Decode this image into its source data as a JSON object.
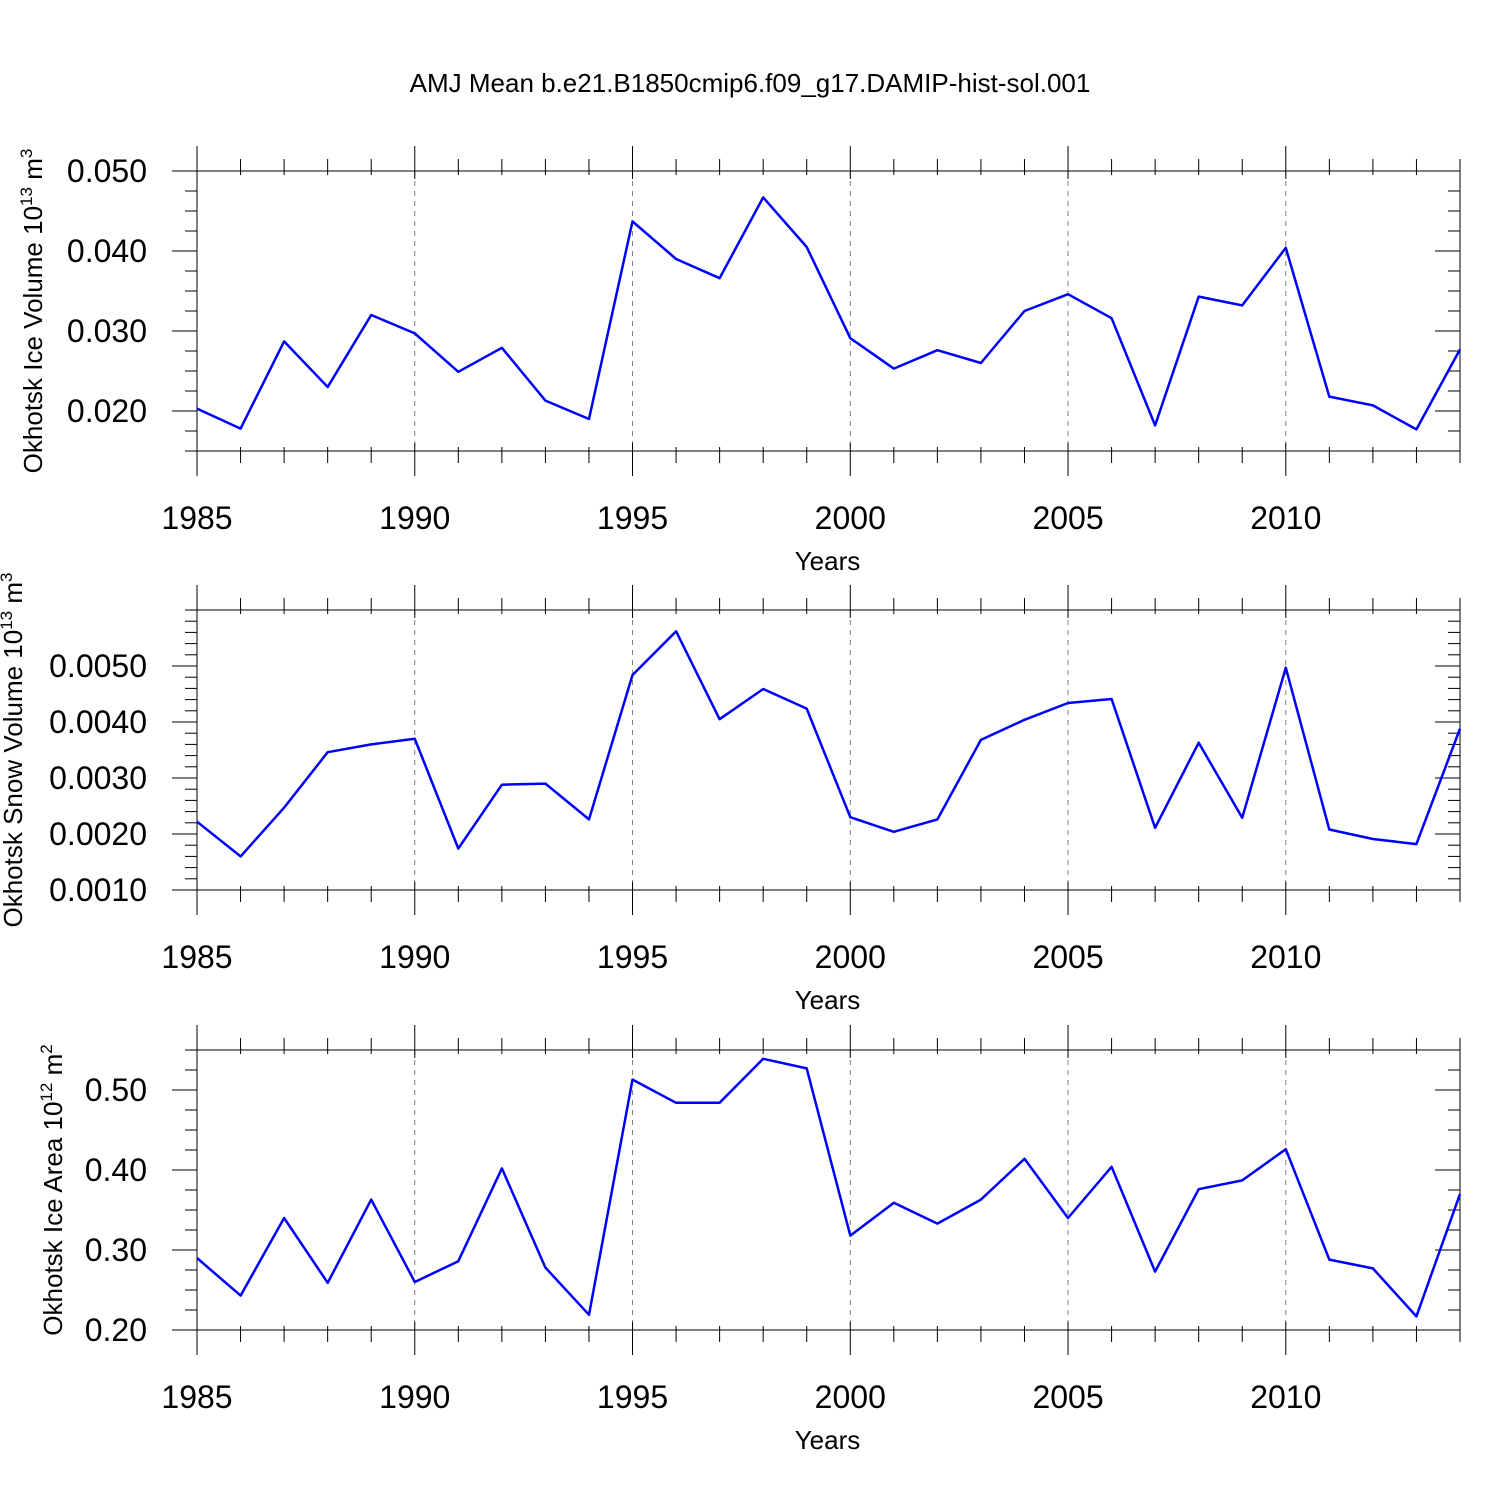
{
  "title": "AMJ Mean b.e21.B1850cmip6.f09_g17.DAMIP-hist-sol.001",
  "colors": {
    "line": "#0000ff",
    "axis": "#000000",
    "grid": "#808080"
  },
  "chart_data": [
    {
      "type": "line",
      "title": "",
      "xlabel": "Years",
      "ylabel": "Okhotsk Ice Volume 10",
      "ylabel_sup": "13",
      "ylabel_unit": "m",
      "ylabel_unit_sup": "3",
      "xlim": [
        1985,
        2014
      ],
      "ylim": [
        0.015,
        0.05
      ],
      "yticks": [
        0.02,
        0.03,
        0.04,
        0.05
      ],
      "ytick_labels": [
        "0.020",
        "0.030",
        "0.040",
        "0.050"
      ],
      "yminor_step": 0.0025,
      "xticks": [
        1985,
        1990,
        1995,
        2000,
        2005,
        2010
      ],
      "xtick_labels": [
        "1985",
        "1990",
        "1995",
        "2000",
        "2005",
        "2010"
      ],
      "vgrid": [
        1990,
        1995,
        2000,
        2005,
        2010
      ],
      "x": [
        1985,
        1986,
        1987,
        1988,
        1989,
        1990,
        1991,
        1992,
        1993,
        1994,
        1995,
        1996,
        1997,
        1998,
        1999,
        2000,
        2001,
        2002,
        2003,
        2004,
        2005,
        2006,
        2007,
        2008,
        2009,
        2010,
        2011,
        2012,
        2013,
        2014
      ],
      "series": [
        {
          "name": "Okhotsk Ice Volume",
          "values": [
            0.0203,
            0.0178,
            0.0287,
            0.023,
            0.032,
            0.0297,
            0.0249,
            0.0279,
            0.0213,
            0.019,
            0.0437,
            0.039,
            0.0366,
            0.0467,
            0.0405,
            0.0291,
            0.0253,
            0.0276,
            0.026,
            0.0325,
            0.0346,
            0.0316,
            0.0182,
            0.0343,
            0.0332,
            0.0404,
            0.0218,
            0.0207,
            0.0177,
            0.0277
          ]
        }
      ]
    },
    {
      "type": "line",
      "title": "",
      "xlabel": "Years",
      "ylabel": "Okhotsk Snow Volume 10",
      "ylabel_sup": "13",
      "ylabel_unit": "m",
      "ylabel_unit_sup": "3",
      "xlim": [
        1985,
        2014
      ],
      "ylim": [
        0.001,
        0.006
      ],
      "yticks": [
        0.001,
        0.002,
        0.003,
        0.004,
        0.005
      ],
      "ytick_labels": [
        "0.0010",
        "0.0020",
        "0.0030",
        "0.0040",
        "0.0050"
      ],
      "yminor_step": 0.0002,
      "xticks": [
        1985,
        1990,
        1995,
        2000,
        2005,
        2010
      ],
      "xtick_labels": [
        "1985",
        "1990",
        "1995",
        "2000",
        "2005",
        "2010"
      ],
      "vgrid": [
        1990,
        1995,
        2000,
        2005,
        2010
      ],
      "x": [
        1985,
        1986,
        1987,
        1988,
        1989,
        1990,
        1991,
        1992,
        1993,
        1994,
        1995,
        1996,
        1997,
        1998,
        1999,
        2000,
        2001,
        2002,
        2003,
        2004,
        2005,
        2006,
        2007,
        2008,
        2009,
        2010,
        2011,
        2012,
        2013,
        2014
      ],
      "series": [
        {
          "name": "Okhotsk Snow Volume",
          "values": [
            0.00222,
            0.0016,
            0.00247,
            0.00346,
            0.0036,
            0.0037,
            0.00174,
            0.00288,
            0.0029,
            0.00226,
            0.00484,
            0.00562,
            0.00405,
            0.00459,
            0.00424,
            0.0023,
            0.00204,
            0.00226,
            0.00368,
            0.00404,
            0.00434,
            0.00441,
            0.00211,
            0.00363,
            0.00229,
            0.00497,
            0.00208,
            0.00191,
            0.00182,
            0.00388
          ]
        }
      ]
    },
    {
      "type": "line",
      "title": "",
      "xlabel": "Years",
      "ylabel": "Okhotsk Ice Area 10",
      "ylabel_sup": "12",
      "ylabel_unit": "m",
      "ylabel_unit_sup": "2",
      "xlim": [
        1985,
        2014
      ],
      "ylim": [
        0.2,
        0.55
      ],
      "yticks": [
        0.2,
        0.3,
        0.4,
        0.5
      ],
      "ytick_labels": [
        "0.20",
        "0.30",
        "0.40",
        "0.50"
      ],
      "yminor_step": 0.025,
      "xticks": [
        1985,
        1990,
        1995,
        2000,
        2005,
        2010
      ],
      "xtick_labels": [
        "1985",
        "1990",
        "1995",
        "2000",
        "2005",
        "2010"
      ],
      "vgrid": [
        1990,
        1995,
        2000,
        2005,
        2010
      ],
      "x": [
        1985,
        1986,
        1987,
        1988,
        1989,
        1990,
        1991,
        1992,
        1993,
        1994,
        1995,
        1996,
        1997,
        1998,
        1999,
        2000,
        2001,
        2002,
        2003,
        2004,
        2005,
        2006,
        2007,
        2008,
        2009,
        2010,
        2011,
        2012,
        2013,
        2014
      ],
      "series": [
        {
          "name": "Okhotsk Ice Area",
          "values": [
            0.29,
            0.243,
            0.34,
            0.259,
            0.363,
            0.26,
            0.286,
            0.402,
            0.278,
            0.219,
            0.513,
            0.484,
            0.484,
            0.539,
            0.527,
            0.318,
            0.359,
            0.333,
            0.363,
            0.414,
            0.34,
            0.404,
            0.273,
            0.376,
            0.387,
            0.426,
            0.288,
            0.277,
            0.217,
            0.37
          ]
        }
      ]
    }
  ]
}
